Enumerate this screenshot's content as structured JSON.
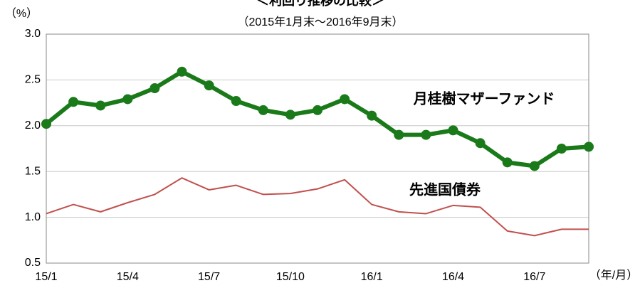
{
  "chart_data": {
    "type": "line",
    "title": "＜利回り推移の比較＞",
    "subtitle": "（2015年1月末～2016年9月末）",
    "y_label": "（%）",
    "x_label": "（年/月）",
    "categories": [
      "15/1",
      null,
      null,
      "15/4",
      null,
      null,
      "15/7",
      null,
      null,
      "15/10",
      null,
      null,
      "16/1",
      null,
      null,
      "16/4",
      null,
      null,
      "16/7",
      null,
      null
    ],
    "series": [
      {
        "name": "月桂樹マザーファンド",
        "color": "#1a7a1a",
        "values": [
          2.02,
          2.26,
          2.22,
          2.29,
          2.41,
          2.59,
          2.44,
          2.27,
          2.17,
          2.12,
          2.17,
          2.29,
          2.11,
          1.9,
          1.9,
          1.95,
          1.81,
          1.6,
          1.56,
          1.75,
          1.77
        ]
      },
      {
        "name": "先進国債券",
        "color": "#c0504d",
        "values": [
          1.04,
          1.14,
          1.06,
          1.16,
          1.25,
          1.43,
          1.3,
          1.35,
          1.25,
          1.26,
          1.31,
          1.41,
          1.14,
          1.06,
          1.04,
          1.13,
          1.11,
          0.85,
          0.8,
          0.87,
          0.87
        ]
      }
    ],
    "ylim": [
      0.5,
      3.0
    ],
    "yticks": [
      0.5,
      {
        "value": 1.0,
        "label": "1.0"
      },
      1.5,
      {
        "value": 2.0,
        "label": "2.0"
      },
      2.5,
      {
        "value": 3.0,
        "label": "3.0"
      }
    ],
    "grid": true
  }
}
